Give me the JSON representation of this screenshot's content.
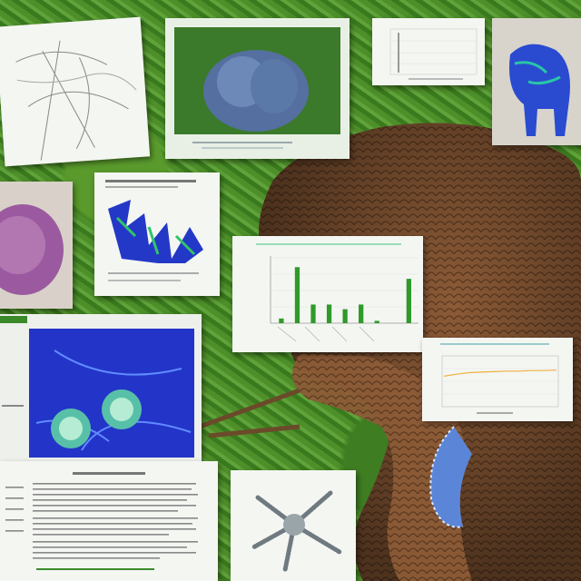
{
  "scene": {
    "background": "jungle foliage",
    "colors": {
      "foliage": "#467f24",
      "creature": "#8a5a36",
      "paper": "#f4f6f2",
      "bar": "#2f9a2a",
      "ink_blue": "#2438c8"
    }
  },
  "chart_data": {
    "type": "bar",
    "title": "",
    "xlabel": "",
    "ylabel": "",
    "categories": [
      "",
      "",
      "",
      "",
      "",
      "",
      "",
      "",
      ""
    ],
    "values": [
      1,
      12,
      4,
      4,
      3,
      4,
      0.5,
      0,
      9.5
    ],
    "ylim": [
      0,
      14
    ]
  },
  "line_chart": {
    "type": "line",
    "values": [
      6,
      6.4,
      6.7,
      6.8,
      6.9,
      7,
      7,
      7.1,
      7.1,
      7.2
    ],
    "ylim": [
      0,
      10
    ]
  }
}
